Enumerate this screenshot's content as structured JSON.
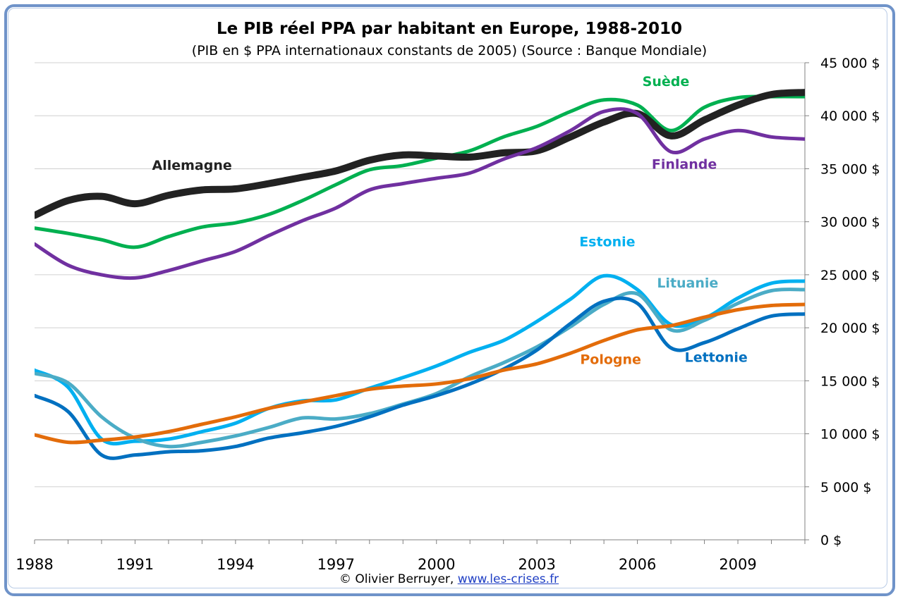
{
  "chart_data": {
    "type": "line",
    "title": "Le PIB réel PPA par habitant en Europe, 1988-2010",
    "subtitle": "(PIB en $ PPA internationaux constants de 2005) (Source : Banque Mondiale)",
    "x_ticks": [
      "1988",
      "1991",
      "1994",
      "1997",
      "2000",
      "2003",
      "2006",
      "2009"
    ],
    "y_ticks": [
      "0 $",
      "5 000 $",
      "10 000 $",
      "15 000 $",
      "20 000 $",
      "25 000 $",
      "30 000 $",
      "35 000 $",
      "40 000 $",
      "45 000 $"
    ],
    "xlim": [
      1988,
      2011
    ],
    "ylim": [
      0,
      45000
    ],
    "grid": true,
    "series": [
      {
        "name": "Suède",
        "color": "#00b050",
        "x": [
          1988,
          1989,
          1990,
          1991,
          1992,
          1993,
          1994,
          1995,
          1996,
          1997,
          1998,
          1999,
          2000,
          2001,
          2002,
          2003,
          2004,
          2005,
          2006,
          2007,
          2008,
          2009,
          2010,
          2011
        ],
        "y": [
          29400,
          28900,
          28300,
          27600,
          28600,
          29500,
          29900,
          30700,
          32000,
          33500,
          34900,
          35300,
          36000,
          36700,
          38000,
          39000,
          40400,
          41500,
          41000,
          38600,
          40800,
          41700,
          41800,
          41800
        ]
      },
      {
        "name": "Allemagne",
        "color": "#222222",
        "x": [
          1988,
          1989,
          1990,
          1991,
          1992,
          1993,
          1994,
          1995,
          1996,
          1997,
          1998,
          1999,
          2000,
          2001,
          2002,
          2003,
          2004,
          2005,
          2006,
          2007,
          2008,
          2009,
          2010,
          2011
        ],
        "y": [
          30600,
          32000,
          32400,
          31700,
          32500,
          33000,
          33100,
          33600,
          34200,
          34800,
          35800,
          36300,
          36200,
          36100,
          36500,
          36700,
          38000,
          39400,
          40200,
          38100,
          39600,
          41000,
          42000,
          42200
        ]
      },
      {
        "name": "Finlande",
        "color": "#7030a0",
        "x": [
          1988,
          1989,
          1990,
          1991,
          1992,
          1993,
          1994,
          1995,
          1996,
          1997,
          1998,
          1999,
          2000,
          2001,
          2002,
          2003,
          2004,
          2005,
          2006,
          2007,
          2008,
          2009,
          2010,
          2011
        ],
        "y": [
          27900,
          25900,
          25000,
          24700,
          25400,
          26300,
          27200,
          28700,
          30100,
          31300,
          33000,
          33600,
          34100,
          34600,
          35900,
          37000,
          38600,
          40400,
          40200,
          36600,
          37800,
          38600,
          38000,
          37800
        ]
      },
      {
        "name": "Estonie",
        "color": "#00b0f0",
        "x": [
          1988,
          1989,
          1990,
          1991,
          1992,
          1993,
          1994,
          1995,
          1996,
          1997,
          1998,
          1999,
          2000,
          2001,
          2002,
          2003,
          2004,
          2005,
          2006,
          2007,
          2008,
          2009,
          2010,
          2011
        ],
        "y": [
          16000,
          14400,
          9500,
          9300,
          9500,
          10200,
          11000,
          12400,
          13100,
          13200,
          14300,
          15300,
          16400,
          17700,
          18800,
          20600,
          22700,
          24900,
          23600,
          20300,
          20900,
          22800,
          24200,
          24400
        ]
      },
      {
        "name": "Lituanie",
        "color": "#4bacc6",
        "x": [
          1988,
          1989,
          1990,
          1991,
          1992,
          1993,
          1994,
          1995,
          1996,
          1997,
          1998,
          1999,
          2000,
          2001,
          2002,
          2003,
          2004,
          2005,
          2006,
          2007,
          2008,
          2009,
          2010,
          2011
        ],
        "y": [
          15700,
          14800,
          11600,
          9600,
          8800,
          9200,
          9800,
          10600,
          11500,
          11400,
          11900,
          12800,
          13800,
          15400,
          16700,
          18200,
          20100,
          22200,
          23200,
          19800,
          20700,
          22300,
          23500,
          23600
        ]
      },
      {
        "name": "Lettonie",
        "color": "#0070c0",
        "x": [
          1988,
          1989,
          1990,
          1991,
          1992,
          1993,
          1994,
          1995,
          1996,
          1997,
          1998,
          1999,
          2000,
          2001,
          2002,
          2003,
          2004,
          2005,
          2006,
          2007,
          2008,
          2009,
          2010,
          2011
        ],
        "y": [
          13600,
          12100,
          8000,
          8000,
          8300,
          8400,
          8800,
          9600,
          10100,
          10700,
          11600,
          12700,
          13600,
          14700,
          16100,
          17900,
          20400,
          22500,
          22300,
          18100,
          18600,
          19900,
          21100,
          21300
        ]
      },
      {
        "name": "Pologne",
        "color": "#e36c0a",
        "x": [
          1988,
          1989,
          1990,
          1991,
          1992,
          1993,
          1994,
          1995,
          1996,
          1997,
          1998,
          1999,
          2000,
          2001,
          2002,
          2003,
          2004,
          2005,
          2006,
          2007,
          2008,
          2009,
          2010,
          2011
        ],
        "y": [
          9900,
          9200,
          9400,
          9700,
          10200,
          10900,
          11600,
          12400,
          13000,
          13600,
          14200,
          14500,
          14700,
          15200,
          16000,
          16600,
          17600,
          18800,
          19800,
          20200,
          21000,
          21700,
          22100,
          22200
        ]
      }
    ],
    "annotations": [
      {
        "text": "Suède",
        "series": "Suède",
        "x": 2006.85,
        "y": 42800
      },
      {
        "text": "Allemagne",
        "series": "Allemagne",
        "x": 1992.7,
        "y": 34900
      },
      {
        "text": "Finlande",
        "series": "Finlande",
        "x": 2007.4,
        "y": 35000
      },
      {
        "text": "Estonie",
        "series": "Estonie",
        "x": 2005.1,
        "y": 27700
      },
      {
        "text": "Lituanie",
        "series": "Lituanie",
        "x": 2007.5,
        "y": 23800
      },
      {
        "text": "Pologne",
        "series": "Pologne",
        "x": 2005.2,
        "y": 16600
      },
      {
        "text": "Lettonie",
        "series": "Lettonie",
        "x": 2008.35,
        "y": 16800
      }
    ]
  },
  "credit": {
    "author": "© Olivier Berruyer,",
    "link": "www.les-crises.fr"
  }
}
